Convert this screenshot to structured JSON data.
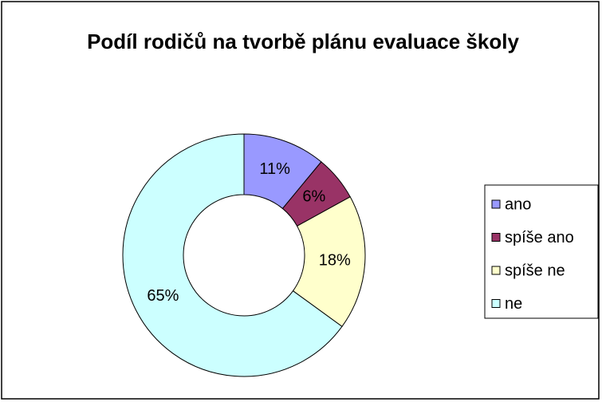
{
  "chart_data": {
    "type": "doughnut",
    "title": "Podíl rodičů na tvorbě plánu evaluace školy",
    "categories": [
      "ano",
      "spíše ano",
      "spíše ne",
      "ne"
    ],
    "values": [
      11,
      6,
      18,
      65
    ],
    "value_labels": [
      "11%",
      "6%",
      "18%",
      "65%"
    ],
    "colors": [
      "#9999ff",
      "#993366",
      "#ffffcc",
      "#ccffff"
    ],
    "legend": "right"
  }
}
